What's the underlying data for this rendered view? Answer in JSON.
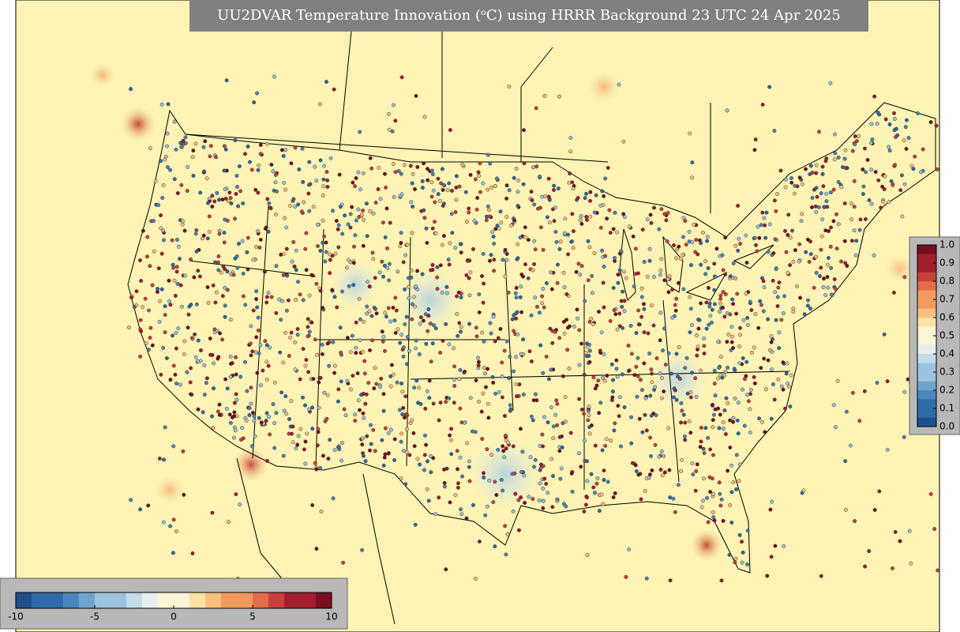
{
  "title": "UU2DVAR Temperature Innovation (ᵒC) using HRRR Background 23 UTC 24 Apr 2025",
  "colorbar_right": {
    "ticks": [
      {
        "value": 0,
        "label": "0.0"
      },
      0.1,
      0.2,
      0.3,
      0.4,
      0.5,
      0.6,
      0.7,
      0.8,
      0.9,
      {
        "value": 1,
        "label": "1.0"
      }
    ]
  },
  "colorbar_bottom": {
    "ticks": [
      -10,
      -5,
      0,
      5,
      10
    ]
  }
}
